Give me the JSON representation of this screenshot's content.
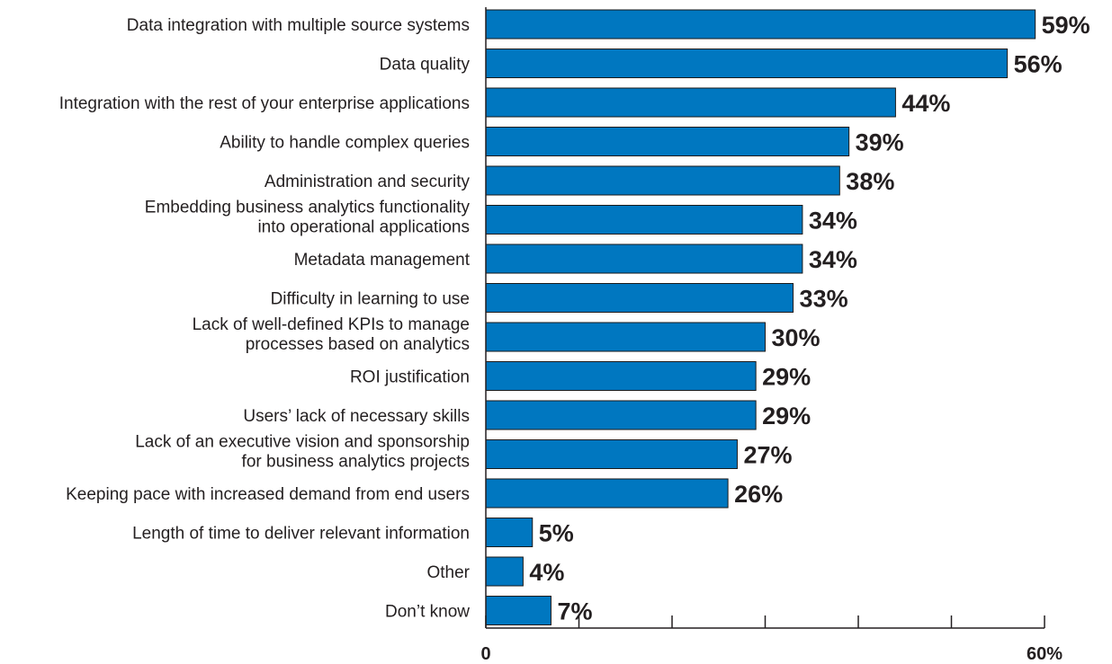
{
  "chart_data": {
    "type": "bar",
    "orientation": "horizontal",
    "title": "",
    "xlabel": "",
    "ylabel": "",
    "xlim": [
      0,
      60
    ],
    "grid": false,
    "legend": "none",
    "bar_color": "#0077c0",
    "x_tick_labels": [
      "0",
      "60%"
    ],
    "categories": [
      [
        "Data integration with multiple source systems"
      ],
      [
        "Data quality"
      ],
      [
        "Integration with the rest of your enterprise applications"
      ],
      [
        "Ability to handle complex queries"
      ],
      [
        "Administration and security"
      ],
      [
        "Embedding business analytics functionality",
        "into operational applications"
      ],
      [
        "Metadata management"
      ],
      [
        "Difficulty in learning to use"
      ],
      [
        "Lack of well-defined KPIs to manage",
        "processes based on analytics"
      ],
      [
        "ROI justification"
      ],
      [
        "Users’ lack of necessary skills"
      ],
      [
        "Lack of an executive vision and sponsorship",
        "for business analytics projects"
      ],
      [
        "Keeping pace with increased demand from end users"
      ],
      [
        "Length of time to deliver relevant information"
      ],
      [
        "Other"
      ],
      [
        "Don’t know"
      ]
    ],
    "values": [
      59,
      56,
      44,
      39,
      38,
      34,
      34,
      33,
      30,
      29,
      29,
      27,
      26,
      5,
      4,
      7
    ],
    "value_labels": [
      "59%",
      "56%",
      "44%",
      "39%",
      "38%",
      "34%",
      "34%",
      "33%",
      "30%",
      "29%",
      "29%",
      "27%",
      "26%",
      "5%",
      "4%",
      "7%"
    ]
  }
}
